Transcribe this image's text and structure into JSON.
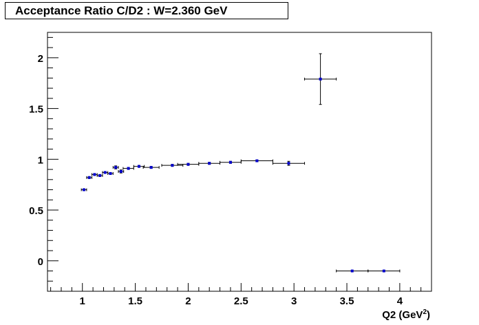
{
  "title": "Acceptance Ratio C/D2 : W=2.360 GeV",
  "chart_data": {
    "type": "scatter",
    "title": "Acceptance Ratio C/D2 : W=2.360 GeV",
    "xlabel": "Q2 (GeV",
    "xlabel_sup": "2",
    "xlabel_tail": ")",
    "ylabel": "",
    "xlim": [
      0.67,
      4.3
    ],
    "ylim": [
      -0.3,
      2.25
    ],
    "xticks": [
      1,
      1.5,
      2,
      2.5,
      3,
      3.5,
      4
    ],
    "xtick_labels": [
      "1",
      "1.5",
      "2",
      "2.5",
      "3",
      "3.5",
      "4"
    ],
    "yticks": [
      0,
      0.5,
      1,
      1.5,
      2
    ],
    "ytick_labels": [
      "0",
      "0.5",
      "1",
      "1.5",
      "2"
    ],
    "grid": false,
    "marker_color": "#0000cc",
    "points": [
      {
        "x": 1.015,
        "y": 0.7,
        "xerr": 0.025,
        "yerr": 0.01
      },
      {
        "x": 1.065,
        "y": 0.82,
        "xerr": 0.025,
        "yerr": 0.01
      },
      {
        "x": 1.115,
        "y": 0.85,
        "xerr": 0.025,
        "yerr": 0.01
      },
      {
        "x": 1.165,
        "y": 0.84,
        "xerr": 0.025,
        "yerr": 0.01
      },
      {
        "x": 1.215,
        "y": 0.87,
        "xerr": 0.025,
        "yerr": 0.01
      },
      {
        "x": 1.265,
        "y": 0.86,
        "xerr": 0.025,
        "yerr": 0.01
      },
      {
        "x": 1.315,
        "y": 0.92,
        "xerr": 0.025,
        "yerr": 0.015
      },
      {
        "x": 1.365,
        "y": 0.88,
        "xerr": 0.025,
        "yerr": 0.015
      },
      {
        "x": 1.435,
        "y": 0.91,
        "xerr": 0.05,
        "yerr": 0.01
      },
      {
        "x": 1.535,
        "y": 0.93,
        "xerr": 0.05,
        "yerr": 0.01
      },
      {
        "x": 1.65,
        "y": 0.92,
        "xerr": 0.075,
        "yerr": 0.01
      },
      {
        "x": 1.85,
        "y": 0.94,
        "xerr": 0.1,
        "yerr": 0.01
      },
      {
        "x": 2.0,
        "y": 0.95,
        "xerr": 0.1,
        "yerr": 0.01
      },
      {
        "x": 2.2,
        "y": 0.96,
        "xerr": 0.1,
        "yerr": 0.01
      },
      {
        "x": 2.4,
        "y": 0.97,
        "xerr": 0.1,
        "yerr": 0.01
      },
      {
        "x": 2.65,
        "y": 0.985,
        "xerr": 0.15,
        "yerr": 0.01
      },
      {
        "x": 2.95,
        "y": 0.96,
        "xerr": 0.15,
        "yerr": 0.02
      },
      {
        "x": 3.25,
        "y": 1.79,
        "xerr": 0.15,
        "yerr": 0.25
      },
      {
        "x": 3.55,
        "y": -0.1,
        "xerr": 0.15,
        "yerr": 0.0
      },
      {
        "x": 3.85,
        "y": -0.1,
        "xerr": 0.15,
        "yerr": 0.0
      }
    ]
  }
}
